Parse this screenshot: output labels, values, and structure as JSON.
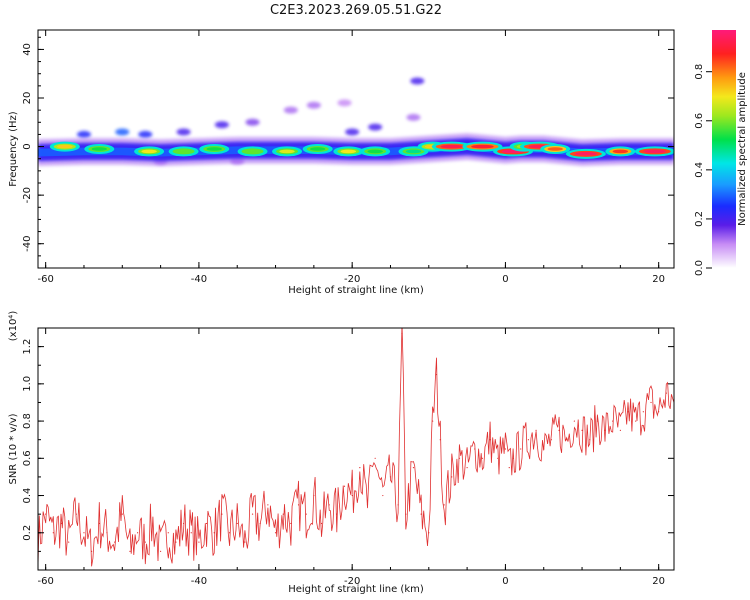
{
  "figure": {
    "title": "C2E3.2023.269.05.51.G22"
  },
  "colorbar": {
    "label": "Normalized spectral amplitude",
    "ticks": [
      "0.0",
      "0.2",
      "0.4",
      "0.6",
      "0.8"
    ],
    "tick_values": [
      0.0,
      0.2,
      0.4,
      0.6,
      0.8
    ]
  },
  "chart_data": [
    {
      "type": "heatmap",
      "xlabel": "Height of straight line (km)",
      "ylabel": "Frequency (Hz)",
      "xlim": [
        -61,
        22
      ],
      "ylim": [
        -50,
        48
      ],
      "x_ticks": [
        -60,
        -40,
        -20,
        0,
        20
      ],
      "y_ticks": [
        -40,
        -20,
        0,
        20,
        40
      ],
      "value_range": [
        0,
        1
      ],
      "band": {
        "center_hz": [
          [
            -61,
            -2.5
          ],
          [
            -55,
            -2.0
          ],
          [
            -50,
            -2.0
          ],
          [
            -45,
            -2.5
          ],
          [
            -40,
            -2.0
          ],
          [
            -35,
            -1.5
          ],
          [
            -30,
            -1.5
          ],
          [
            -25,
            -1.5
          ],
          [
            -20,
            -2.0
          ],
          [
            -15,
            -2.0
          ],
          [
            -10,
            -1.0
          ],
          [
            -5,
            0.0
          ],
          [
            0,
            -1.5
          ],
          [
            2,
            -1.0
          ],
          [
            5,
            -1.0
          ],
          [
            10,
            -2.5
          ],
          [
            15,
            -2.0
          ],
          [
            20,
            -2.0
          ],
          [
            22,
            -2.0
          ]
        ],
        "half_width_hz": 3.5
      },
      "blobs": [
        {
          "x": -57.5,
          "y": 0,
          "v": 0.75
        },
        {
          "x": -53,
          "y": -1,
          "v": 0.55
        },
        {
          "x": -46.5,
          "y": -2,
          "v": 0.72
        },
        {
          "x": -42,
          "y": -2,
          "v": 0.6
        },
        {
          "x": -38,
          "y": -1,
          "v": 0.55
        },
        {
          "x": -33,
          "y": -2,
          "v": 0.6
        },
        {
          "x": -28.5,
          "y": -2,
          "v": 0.7
        },
        {
          "x": -24.5,
          "y": -1,
          "v": 0.55
        },
        {
          "x": -20.5,
          "y": -2,
          "v": 0.72
        },
        {
          "x": -17,
          "y": -2,
          "v": 0.55
        },
        {
          "x": -12,
          "y": -2,
          "v": 0.5
        },
        {
          "x": -9.5,
          "y": 0,
          "v": 0.75
        },
        {
          "x": -7,
          "y": 0,
          "v": 0.95
        },
        {
          "x": -3,
          "y": 0,
          "v": 0.92
        },
        {
          "x": 1,
          "y": -2,
          "v": 0.98
        },
        {
          "x": 2.5,
          "y": 0,
          "v": 0.65
        },
        {
          "x": 4.5,
          "y": 0,
          "v": 0.96
        },
        {
          "x": 6.5,
          "y": -1,
          "v": 0.85
        },
        {
          "x": 10.5,
          "y": -3,
          "v": 0.97
        },
        {
          "x": 15,
          "y": -2,
          "v": 0.88
        },
        {
          "x": 19.5,
          "y": -2,
          "v": 0.97
        }
      ],
      "scatter_patches": [
        {
          "x": -55,
          "y": 5,
          "v": 0.25
        },
        {
          "x": -50,
          "y": 6,
          "v": 0.3
        },
        {
          "x": -47,
          "y": 5,
          "v": 0.25
        },
        {
          "x": -42,
          "y": 6,
          "v": 0.2
        },
        {
          "x": -37,
          "y": 9,
          "v": 0.2
        },
        {
          "x": -33,
          "y": 10,
          "v": 0.15
        },
        {
          "x": -28,
          "y": 15,
          "v": 0.12
        },
        {
          "x": -25,
          "y": 17,
          "v": 0.12
        },
        {
          "x": -21,
          "y": 18,
          "v": 0.1
        },
        {
          "x": -17,
          "y": 8,
          "v": 0.2
        },
        {
          "x": -20,
          "y": 6,
          "v": 0.2
        },
        {
          "x": -12,
          "y": 12,
          "v": 0.12
        },
        {
          "x": -11.5,
          "y": 27,
          "v": 0.2
        },
        {
          "x": -35,
          "y": -6,
          "v": 0.12
        },
        {
          "x": -45,
          "y": -6,
          "v": 0.12
        }
      ]
    },
    {
      "type": "line",
      "xlabel": "Height of straight line (km)",
      "ylabel": "SNR (10 * v/v)",
      "y_multiplier": "(x10⁴)",
      "xlim": [
        -61,
        22
      ],
      "ylim": [
        0,
        1.3
      ],
      "x_ticks": [
        -60,
        -40,
        -20,
        0,
        20
      ],
      "y_ticks": [
        0.2,
        0.4,
        0.6,
        0.8,
        1.0,
        1.2
      ],
      "color": "#e03030",
      "series": [
        {
          "x": [
            -61,
            -60,
            -59,
            -58,
            -57,
            -56,
            -55,
            -54,
            -53,
            -52,
            -51,
            -50,
            -49,
            -48,
            -47,
            -46,
            -45,
            -44,
            -43,
            -42,
            -41,
            -40,
            -39,
            -38,
            -37,
            -36,
            -35,
            -34,
            -33,
            -32,
            -31,
            -30,
            -29,
            -28,
            -27,
            -26,
            -25,
            -24,
            -23,
            -22,
            -21,
            -20,
            -19,
            -18,
            -17,
            -16,
            -15,
            -14,
            -13.5,
            -13,
            -12,
            -11,
            -10,
            -9.5,
            -9,
            -8.5,
            -8,
            -7,
            -6,
            -5,
            -4,
            -3,
            -2,
            -1,
            0,
            0.5,
            1,
            2,
            3,
            4,
            5,
            6,
            7,
            8,
            9,
            10,
            11,
            12,
            13,
            14,
            15,
            16,
            17,
            18,
            19,
            20,
            21,
            22
          ],
          "values": [
            0.15,
            0.3,
            0.2,
            0.25,
            0.15,
            0.3,
            0.2,
            0.1,
            0.25,
            0.2,
            0.15,
            0.3,
            0.1,
            0.2,
            0.15,
            0.25,
            0.1,
            0.2,
            0.15,
            0.25,
            0.2,
            0.15,
            0.25,
            0.2,
            0.3,
            0.2,
            0.25,
            0.15,
            0.3,
            0.25,
            0.35,
            0.2,
            0.3,
            0.25,
            0.35,
            0.3,
            0.4,
            0.25,
            0.35,
            0.3,
            0.45,
            0.4,
            0.55,
            0.35,
            0.6,
            0.4,
            0.5,
            0.35,
            1.27,
            0.3,
            0.55,
            0.3,
            0.2,
            0.8,
            1.05,
            0.7,
            0.35,
            0.5,
            0.6,
            0.55,
            0.65,
            0.6,
            0.7,
            0.6,
            0.65,
            0.55,
            0.6,
            0.65,
            0.7,
            0.75,
            0.65,
            0.7,
            0.75,
            0.7,
            0.8,
            0.75,
            0.7,
            0.8,
            0.75,
            0.8,
            0.75,
            0.85,
            0.8,
            0.85,
            0.9,
            0.85,
            0.95,
            0.9
          ]
        }
      ]
    }
  ]
}
